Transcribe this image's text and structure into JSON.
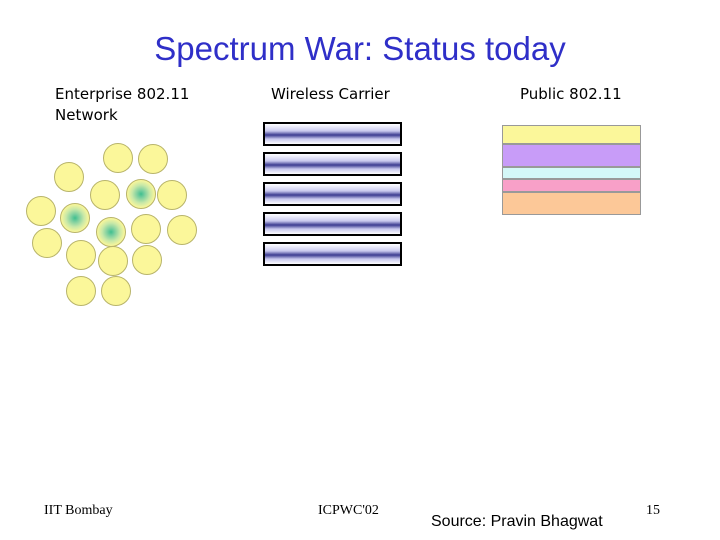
{
  "slide": {
    "title": "Spectrum War: Status today",
    "columns": {
      "enterprise": {
        "line1": "Enterprise 802.11",
        "line2": "Network"
      },
      "carrier": {
        "label": "Wireless Carrier"
      },
      "public": {
        "label": "Public 802.11"
      }
    },
    "footer": {
      "left": "IIT Bombay",
      "center": "ICPWC'02",
      "source": "Source: Pravin Bhagwat",
      "page_number": "15"
    },
    "colors": {
      "title": "#2f2fc8",
      "cell_fill": "#fbf79a",
      "access_point": "#3fbf8f",
      "public_bands": [
        "#fbf79a",
        "#c89cf8",
        "#d4f8f8",
        "#f8a0c8",
        "#fcc898"
      ]
    }
  }
}
